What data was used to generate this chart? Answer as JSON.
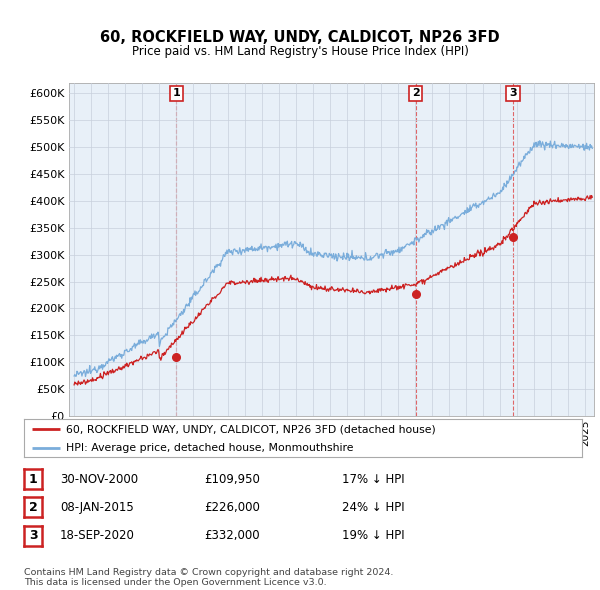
{
  "title": "60, ROCKFIELD WAY, UNDY, CALDICOT, NP26 3FD",
  "subtitle": "Price paid vs. HM Land Registry's House Price Index (HPI)",
  "ylim": [
    0,
    620000
  ],
  "yticks": [
    0,
    50000,
    100000,
    150000,
    200000,
    250000,
    300000,
    350000,
    400000,
    450000,
    500000,
    550000,
    600000
  ],
  "ytick_labels": [
    "£0",
    "£50K",
    "£100K",
    "£150K",
    "£200K",
    "£250K",
    "£300K",
    "£350K",
    "£400K",
    "£450K",
    "£500K",
    "£550K",
    "£600K"
  ],
  "hpi_color": "#7aaddb",
  "price_color": "#cc2222",
  "chart_bg": "#e8f0f8",
  "sales": [
    {
      "date_num": 2001.0,
      "price": 109950,
      "label": "1"
    },
    {
      "date_num": 2015.03,
      "price": 226000,
      "label": "2"
    },
    {
      "date_num": 2020.75,
      "price": 332000,
      "label": "3"
    }
  ],
  "legend_price_label": "60, ROCKFIELD WAY, UNDY, CALDICOT, NP26 3FD (detached house)",
  "legend_hpi_label": "HPI: Average price, detached house, Monmouthshire",
  "table_rows": [
    {
      "num": "1",
      "date": "30-NOV-2000",
      "price": "£109,950",
      "hpi": "17% ↓ HPI"
    },
    {
      "num": "2",
      "date": "08-JAN-2015",
      "price": "£226,000",
      "hpi": "24% ↓ HPI"
    },
    {
      "num": "3",
      "date": "18-SEP-2020",
      "price": "£332,000",
      "hpi": "19% ↓ HPI"
    }
  ],
  "footer": "Contains HM Land Registry data © Crown copyright and database right 2024.\nThis data is licensed under the Open Government Licence v3.0.",
  "background_color": "#ffffff",
  "grid_color": "#c8d0dc",
  "xlim_left": 1994.7,
  "xlim_right": 2025.5
}
